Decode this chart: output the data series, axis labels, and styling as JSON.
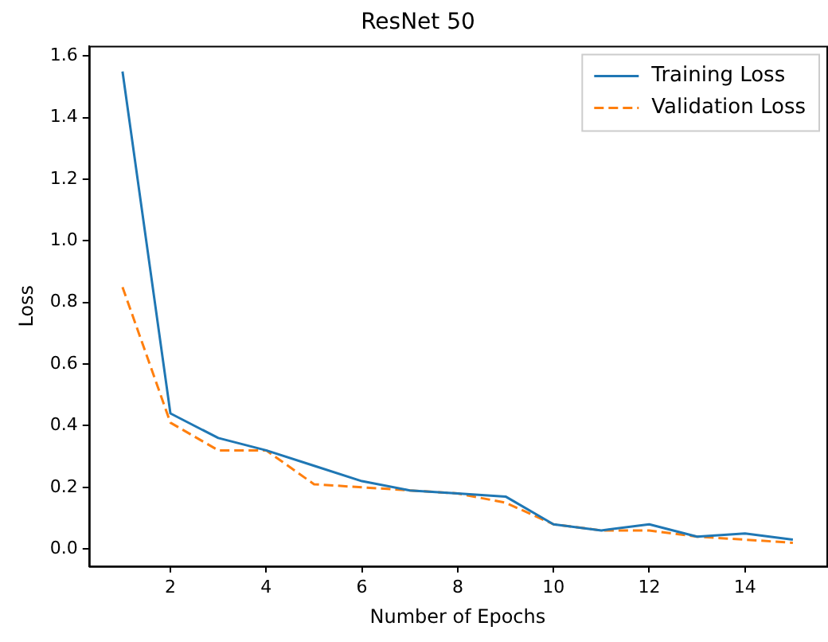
{
  "chart_data": {
    "type": "line",
    "title": "ResNet 50",
    "xlabel": "Number of Epochs",
    "ylabel": "Loss",
    "x": [
      1,
      2,
      3,
      4,
      5,
      6,
      7,
      8,
      9,
      10,
      11,
      12,
      13,
      14,
      15
    ],
    "xlim": [
      0.3,
      15.7
    ],
    "xticks": [
      2,
      4,
      6,
      8,
      10,
      12,
      14
    ],
    "ylim": [
      -0.056,
      1.633
    ],
    "yticks": [
      {
        "value": 0,
        "label": "0.0"
      },
      {
        "value": 0.2,
        "label": "0.2"
      },
      {
        "value": 0.4,
        "label": "0.4"
      },
      {
        "value": 0.6,
        "label": "0.6"
      },
      {
        "value": 0.8,
        "label": "0.8"
      },
      {
        "value": 1,
        "label": "1.0"
      },
      {
        "value": 1.2,
        "label": "1.2"
      },
      {
        "value": 1.4,
        "label": "1.4"
      },
      {
        "value": 1.6,
        "label": "1.6"
      }
    ],
    "grid": false,
    "legend": "top right",
    "marker": "none",
    "series": [
      {
        "name": "Training Loss",
        "color": "#1f77b4",
        "line_style": "solid",
        "values": [
          1.55,
          0.44,
          0.36,
          0.32,
          0.27,
          0.22,
          0.19,
          0.18,
          0.17,
          0.08,
          0.06,
          0.08,
          0.04,
          0.05,
          0.03
        ]
      },
      {
        "name": "Validation Loss",
        "color": "#ff7f0e",
        "line_style": "dashed",
        "values": [
          0.85,
          0.41,
          0.32,
          0.32,
          0.21,
          0.2,
          0.19,
          0.18,
          0.15,
          0.08,
          0.06,
          0.06,
          0.04,
          0.03,
          0.02
        ]
      }
    ]
  }
}
